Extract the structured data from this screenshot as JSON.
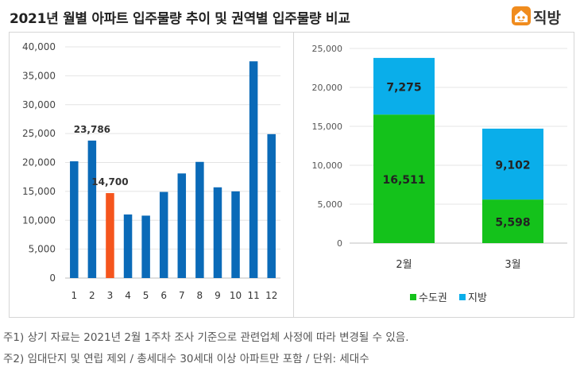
{
  "title": "2021년 월별 아파트 입주물량 추이 및 권역별 입주물량 비교",
  "brand": {
    "name": "직방",
    "color": "#f08c1e",
    "icon": "house-icon"
  },
  "notes": [
    "주1) 상기 자료는 2021년 2월 1주차 조사 기준으로 관련업체 사정에 따라 변경될 수 있음.",
    "주2) 임대단지 및 연립 제외 / 총세대수 30세대 이상 아파트만 포함 / 단위: 세대수"
  ],
  "chart_data": [
    {
      "type": "bar",
      "categories": [
        "1",
        "2",
        "3",
        "4",
        "5",
        "6",
        "7",
        "8",
        "9",
        "10",
        "11",
        "12"
      ],
      "values": [
        20200,
        23786,
        14700,
        11000,
        10800,
        14900,
        18100,
        20100,
        15700,
        15000,
        37500,
        24900
      ],
      "colors": [
        "#0a6ab8",
        "#0a6ab8",
        "#f5551d",
        "#0a6ab8",
        "#0a6ab8",
        "#0a6ab8",
        "#0a6ab8",
        "#0a6ab8",
        "#0a6ab8",
        "#0a6ab8",
        "#0a6ab8",
        "#0a6ab8"
      ],
      "data_labels": [
        {
          "index": 1,
          "text": "23,786"
        },
        {
          "index": 2,
          "text": "14,700"
        }
      ],
      "ylim": [
        0,
        40000
      ],
      "yticks": [
        "0",
        "5,000",
        "10,000",
        "15,000",
        "20,000",
        "25,000",
        "30,000",
        "35,000",
        "40,000"
      ],
      "grid": true
    },
    {
      "type": "bar",
      "stacked": true,
      "categories": [
        "2월",
        "3월"
      ],
      "series": [
        {
          "name": "수도권",
          "values": [
            16511,
            5598
          ],
          "labels": [
            "16,511",
            "5,598"
          ],
          "color": "#14c21b"
        },
        {
          "name": "지방",
          "values": [
            7275,
            9102
          ],
          "labels": [
            "7,275",
            "9,102"
          ],
          "color": "#0aaeea"
        }
      ],
      "ylim": [
        0,
        25000
      ],
      "yticks": [
        "0",
        "5,000",
        "10,000",
        "15,000",
        "20,000",
        "25,000"
      ],
      "grid": true,
      "legend_position": "bottom"
    }
  ]
}
